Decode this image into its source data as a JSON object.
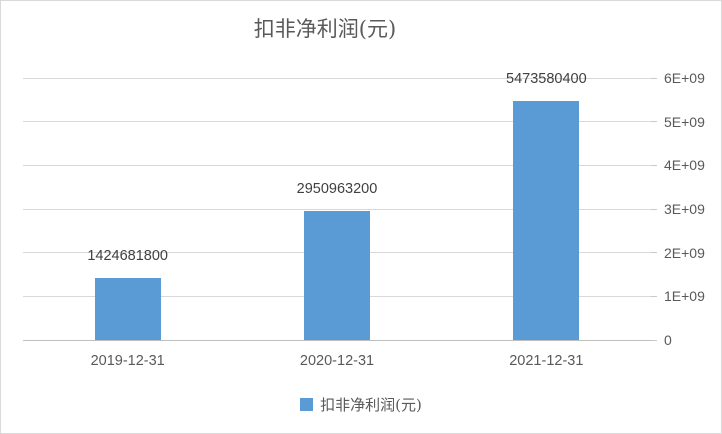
{
  "chart_data": {
    "type": "bar",
    "title": "扣非净利润(元)",
    "categories": [
      "2019-12-31",
      "2020-12-31",
      "2021-12-31"
    ],
    "series": [
      {
        "name": "扣非净利润(元)",
        "values": [
          1424681800,
          2950963200,
          5473580400
        ],
        "data_labels": [
          "1424681800",
          "2950963200",
          "5473580400"
        ],
        "color": "#5B9BD5"
      }
    ],
    "ylim": [
      0,
      6000000000
    ],
    "yticks": [
      0,
      1000000000,
      2000000000,
      3000000000,
      4000000000,
      5000000000,
      6000000000
    ],
    "ytick_labels": [
      "0",
      "1E+09",
      "2E+09",
      "3E+09",
      "4E+09",
      "5E+09",
      "6E+09"
    ],
    "y_axis_side": "right",
    "grid": true,
    "legend_position": "bottom"
  },
  "legend": {
    "label": "扣非净利润(元)",
    "swatch_color": "#5B9BD5"
  },
  "colors": {
    "bar": "#5B9BD5",
    "gridline": "#d9d9d9",
    "axis_line": "#bfbfbf",
    "title_text": "#595959",
    "axis_text": "#595959",
    "value_text": "#404040",
    "frame_border": "#d9d9d9",
    "background": "#ffffff"
  }
}
